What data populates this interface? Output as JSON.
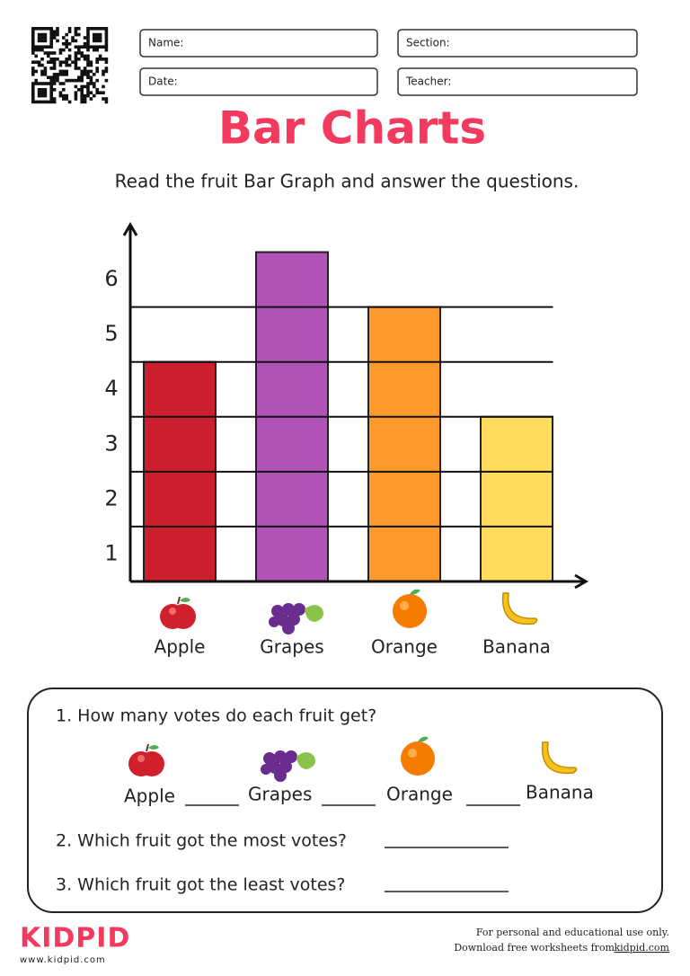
{
  "header": {
    "fields": [
      "Name:",
      "Section:",
      "Date:",
      "Teacher:"
    ],
    "title": "Bar Charts",
    "instruction": "Read the fruit Bar Graph and answer the questions."
  },
  "chart_data": {
    "type": "bar",
    "categories": [
      "Apple",
      "Grapes",
      "Orange",
      "Banana"
    ],
    "values": [
      4,
      6,
      5,
      3
    ],
    "colors": [
      "#cc1f2e",
      "#b153b8",
      "#ff9a2a",
      "#ffdc5c"
    ],
    "ylim": [
      0,
      6.5
    ],
    "yticks": [
      1,
      2,
      3,
      4,
      5,
      6
    ],
    "grid": true
  },
  "questions": [
    "1. How many votes do each fruit get?",
    "2. Which fruit got the most votes?",
    "3. Which fruit got the least votes?"
  ],
  "footer": {
    "logo": "KIDPID",
    "url": "www.kidpid.com",
    "note1": "For personal and educational use only.",
    "note2": "Download free worksheets from",
    "link": "kidpid.com"
  }
}
